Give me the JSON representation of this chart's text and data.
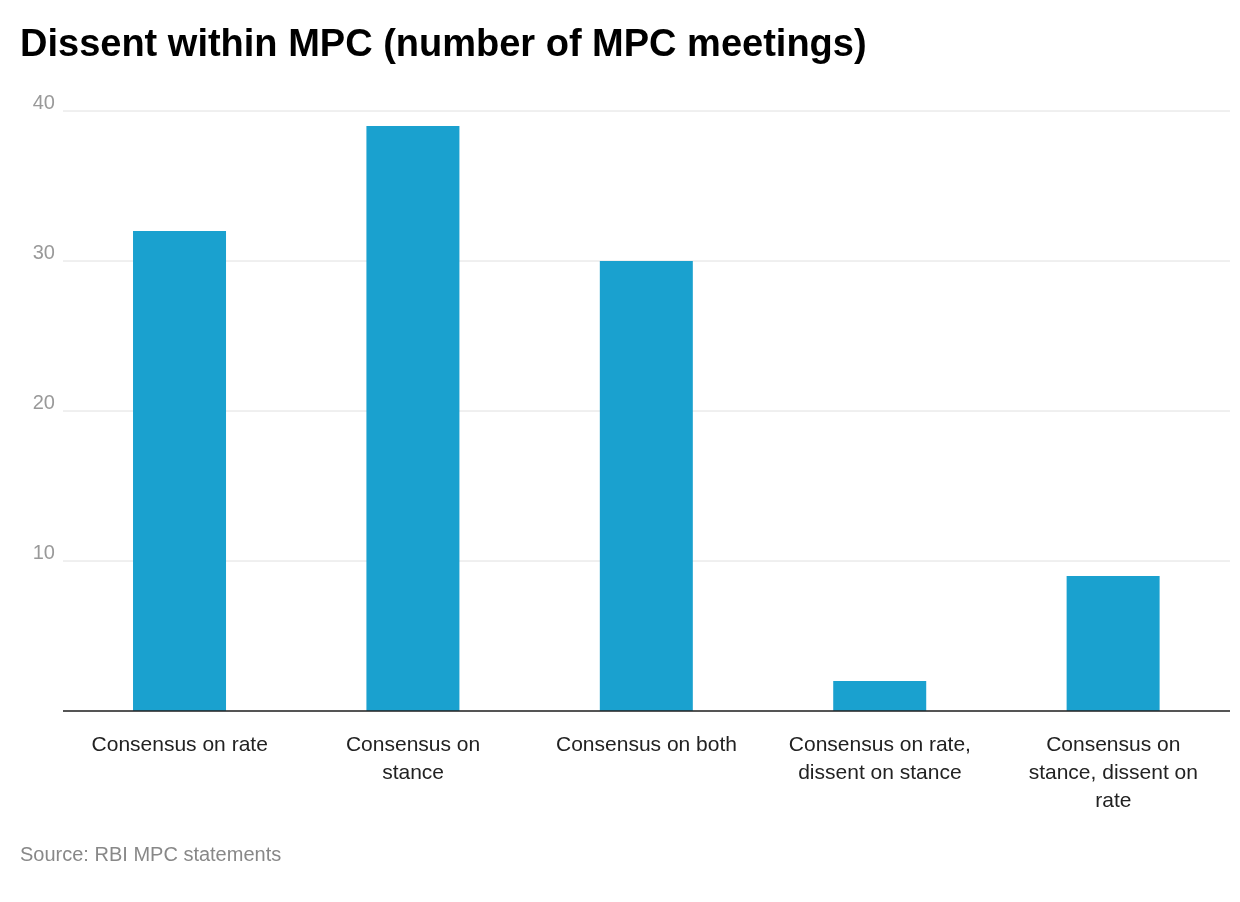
{
  "chart_data": {
    "type": "bar",
    "title": "Dissent within MPC (number of MPC meetings)",
    "categories": [
      "Consensus on rate",
      "Consensus on stance",
      "Consensus on both",
      "Consensus on rate, dissent on stance",
      "Consensus on stance, dissent on rate"
    ],
    "values": [
      32,
      39,
      30,
      2,
      9
    ],
    "color": "#1aa1cf",
    "ylim": [
      0,
      40
    ],
    "yticks": [
      10,
      20,
      30,
      40
    ],
    "grid": "y",
    "annotations": [
      "Source: RBI MPC statements"
    ]
  }
}
